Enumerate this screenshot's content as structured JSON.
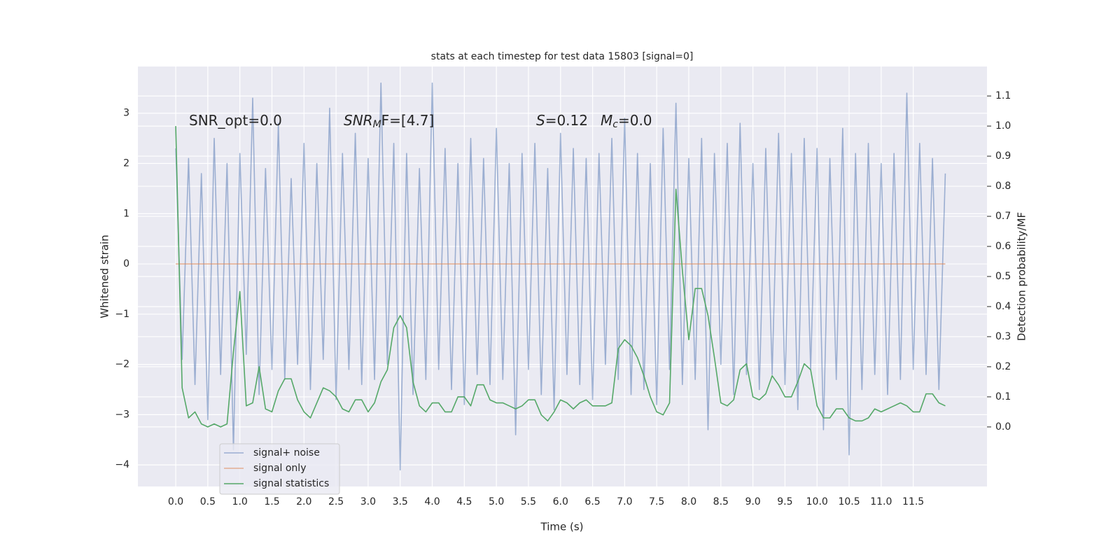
{
  "chart_data": {
    "type": "line",
    "title": "stats at each timestep for test data 15803 [signal=0]",
    "xlabel": "Time (s)",
    "ylabel": "Whitened strain",
    "y2label": "Detection probability/MF",
    "annotations": [
      {
        "text": "SNR_opt=0.0"
      },
      {
        "text": "SNR",
        "sub": "M",
        "text2": "F=[4.7]"
      },
      {
        "text": "S",
        "text2": "=0.12"
      },
      {
        "text": "M",
        "sub": "c",
        "text2": "=0.0"
      }
    ],
    "x": [
      0,
      0.1,
      0.2,
      0.3,
      0.4,
      0.5,
      0.6,
      0.7,
      0.8,
      0.9,
      1,
      1.1,
      1.2,
      1.3,
      1.4,
      1.5,
      1.6,
      1.7,
      1.8,
      1.9,
      2,
      2.1,
      2.2,
      2.3,
      2.4,
      2.5,
      2.6,
      2.7,
      2.8,
      2.9,
      3,
      3.1,
      3.2,
      3.3,
      3.4,
      3.5,
      3.6,
      3.7,
      3.8,
      3.9,
      4,
      4.1,
      4.2,
      4.3,
      4.4,
      4.5,
      4.6,
      4.7,
      4.8,
      4.9,
      5,
      5.1,
      5.2,
      5.3,
      5.4,
      5.5,
      5.6,
      5.7,
      5.8,
      5.9,
      6,
      6.1,
      6.2,
      6.3,
      6.4,
      6.5,
      6.6,
      6.7,
      6.8,
      6.9,
      7,
      7.1,
      7.2,
      7.3,
      7.4,
      7.5,
      7.6,
      7.7,
      7.8,
      7.9,
      8,
      8.1,
      8.2,
      8.3,
      8.4,
      8.5,
      8.6,
      8.7,
      8.8,
      8.9,
      9,
      9.1,
      9.2,
      9.3,
      9.4,
      9.5,
      9.6,
      9.7,
      9.8,
      9.9,
      10,
      10.1,
      10.2,
      10.3,
      10.4,
      10.5,
      10.6,
      10.7,
      10.8,
      10.9,
      11,
      11.1,
      11.2,
      11.3,
      11.4,
      11.5,
      11.6,
      11.7,
      11.8,
      11.9,
      12
    ],
    "series": [
      {
        "name": "signal+ noise",
        "color": "#4c72b0",
        "values": [
          2.3,
          -1.9,
          2.1,
          -2.4,
          1.8,
          -3.1,
          2.5,
          -2.2,
          2.0,
          -3.7,
          2.2,
          -1.8,
          3.3,
          -2.6,
          1.9,
          -2.1,
          2.8,
          -2.3,
          1.7,
          -2.0,
          2.4,
          -2.5,
          2.0,
          -1.9,
          3.1,
          -2.7,
          2.2,
          -2.1,
          2.6,
          -2.4,
          2.1,
          -2.3,
          3.6,
          -2.0,
          2.4,
          -4.1,
          2.2,
          -2.6,
          1.9,
          -2.3,
          3.6,
          -2.1,
          2.3,
          -2.5,
          2.0,
          -2.8,
          2.5,
          -2.2,
          2.1,
          -2.4,
          2.7,
          -2.3,
          2.0,
          -3.4,
          2.2,
          -2.1,
          2.4,
          -2.6,
          1.9,
          -2.9,
          2.6,
          -2.2,
          2.3,
          -2.4,
          2.1,
          -2.7,
          2.2,
          -2.0,
          2.5,
          -2.3,
          2.9,
          -2.6,
          2.2,
          -2.5,
          2.0,
          -2.8,
          2.7,
          -2.1,
          3.2,
          -2.4,
          2.1,
          -2.3,
          2.5,
          -3.3,
          2.2,
          -2.0,
          2.4,
          -2.6,
          2.8,
          -2.2,
          2.0,
          -2.5,
          2.3,
          -2.2,
          2.6,
          -2.4,
          2.2,
          -2.9,
          2.5,
          -2.1,
          2.3,
          -3.3,
          2.1,
          -2.3,
          2.7,
          -3.8,
          2.2,
          -2.5,
          2.4,
          -2.2,
          2.0,
          -2.6,
          2.2,
          -2.3,
          3.4,
          -2.1,
          2.4,
          -2.2,
          2.1,
          -2.5,
          1.8
        ]
      },
      {
        "name": "signal only",
        "color": "#dd8452",
        "x": [
          0,
          12
        ],
        "values": [
          0,
          0
        ]
      },
      {
        "name": "signal statistics",
        "color": "#55a868",
        "axis": "y2",
        "values": [
          1.0,
          0.13,
          0.03,
          0.05,
          0.01,
          0.0,
          0.01,
          0.0,
          0.01,
          0.25,
          0.45,
          0.07,
          0.08,
          0.2,
          0.06,
          0.05,
          0.12,
          0.16,
          0.16,
          0.09,
          0.05,
          0.03,
          0.08,
          0.13,
          0.12,
          0.1,
          0.06,
          0.05,
          0.09,
          0.09,
          0.05,
          0.08,
          0.15,
          0.19,
          0.33,
          0.37,
          0.33,
          0.15,
          0.07,
          0.05,
          0.08,
          0.08,
          0.05,
          0.05,
          0.1,
          0.1,
          0.07,
          0.14,
          0.14,
          0.09,
          0.08,
          0.08,
          0.07,
          0.06,
          0.07,
          0.09,
          0.09,
          0.04,
          0.02,
          0.05,
          0.09,
          0.08,
          0.06,
          0.08,
          0.09,
          0.07,
          0.07,
          0.07,
          0.08,
          0.26,
          0.29,
          0.27,
          0.23,
          0.17,
          0.1,
          0.05,
          0.04,
          0.08,
          0.79,
          0.52,
          0.29,
          0.46,
          0.46,
          0.37,
          0.23,
          0.08,
          0.07,
          0.09,
          0.19,
          0.21,
          0.1,
          0.09,
          0.11,
          0.17,
          0.14,
          0.1,
          0.1,
          0.15,
          0.21,
          0.19,
          0.07,
          0.03,
          0.03,
          0.06,
          0.06,
          0.03,
          0.02,
          0.02,
          0.03,
          0.06,
          0.05,
          0.06,
          0.07,
          0.08,
          0.07,
          0.05,
          0.05,
          0.11,
          0.11,
          0.08,
          0.07
        ]
      }
    ],
    "xlim": [
      -0.59,
      12.65
    ],
    "xticks": [
      {
        "value": 0,
        "label": "0.0"
      },
      0.5,
      {
        "value": 1,
        "label": "1.0"
      },
      1.5,
      {
        "value": 2,
        "label": "2.0"
      },
      2.5,
      {
        "value": 3,
        "label": "3.0"
      },
      3.5,
      {
        "value": 4,
        "label": "4.0"
      },
      4.5,
      {
        "value": 5,
        "label": "5.0"
      },
      5.5,
      {
        "value": 6,
        "label": "6.0"
      },
      6.5,
      {
        "value": 7,
        "label": "7.0"
      },
      7.5,
      {
        "value": 8,
        "label": "8.0"
      },
      8.5,
      {
        "value": 9,
        "label": "9.0"
      },
      9.5,
      {
        "value": 10,
        "label": "10.0"
      },
      10.5,
      {
        "value": 11,
        "label": "11.0"
      },
      11.5
    ],
    "ylim": [
      -4.43,
      3.93
    ],
    "yticks": [
      {
        "value": -4,
        "label": "−4"
      },
      {
        "value": -3,
        "label": "−3"
      },
      {
        "value": -2,
        "label": "−2"
      },
      {
        "value": -1,
        "label": "−1"
      },
      0,
      1,
      2,
      3
    ],
    "y2lim": [
      -0.198,
      1.198
    ],
    "y2ticks": [
      {
        "value": 0,
        "label": "0.0"
      },
      0.1,
      0.2,
      0.3,
      0.4,
      0.5,
      0.6,
      0.7,
      0.8,
      0.9,
      {
        "value": 1,
        "label": "1.0"
      },
      1.1
    ],
    "grid": true,
    "legend": "lower left"
  }
}
